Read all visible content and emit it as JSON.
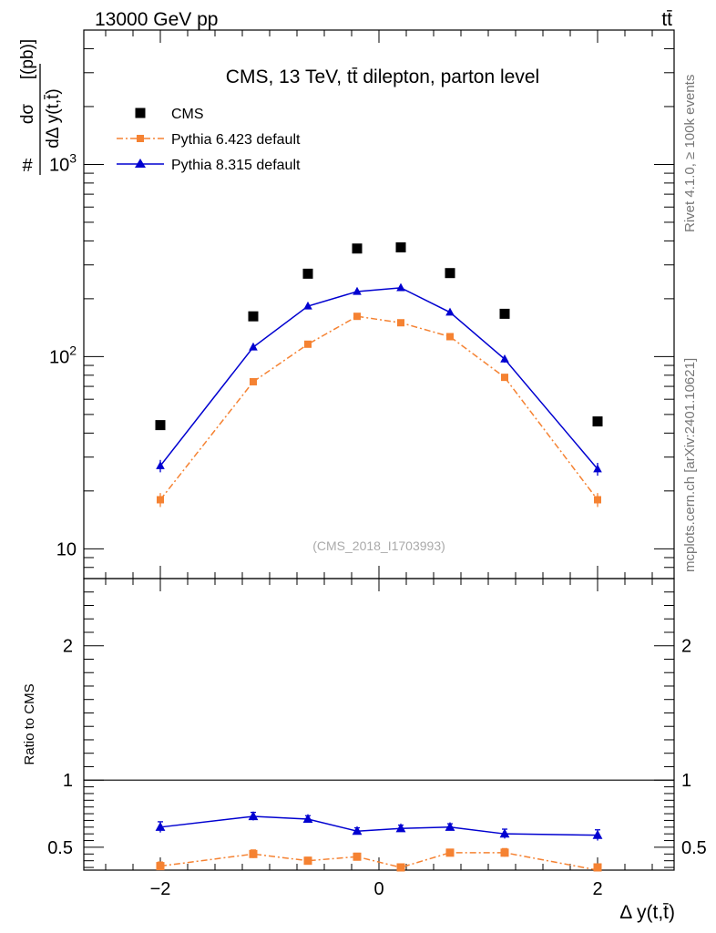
{
  "header": {
    "left": "13000 GeV pp",
    "right": "tt̄"
  },
  "side": {
    "rivet": "Rivet 4.1.0, ≥ 100k events",
    "mcplots": "mcplots.cern.ch [arXiv:2401.10621]"
  },
  "chart_data": {
    "type": "scatter",
    "title": "CMS, 13 TeV, tt̄ dilepton, parton level",
    "watermark": "(CMS_2018_I1703993)",
    "xlabel": "Δ y(t,t̄)",
    "ylabel_main": "# dσ / dΔ y(t,t̄) [(pb)]",
    "ylabel_ratio": "Ratio to CMS",
    "xlim": [
      -2.7,
      2.7
    ],
    "ylim": [
      7,
      5000
    ],
    "ratio_ylim": [
      0.33,
      2.5
    ],
    "x_ticks": [
      -2,
      0,
      2
    ],
    "x_tick_labels": [
      "−2",
      "0",
      "2"
    ],
    "y_ticks": [
      10,
      100,
      1000
    ],
    "y_tick_labels": [
      "10",
      "10²",
      "10³"
    ],
    "ratio_ticks": [
      0.5,
      1,
      2
    ],
    "ratio_tick_labels": [
      "0.5",
      "1",
      "2"
    ],
    "x": [
      -2.0,
      -1.15,
      -0.65,
      -0.2,
      0.2,
      0.65,
      1.15,
      2.0
    ],
    "series": [
      {
        "name": "CMS",
        "color": "#000000",
        "marker": "square",
        "style": "none",
        "values": [
          44,
          162,
          270,
          365,
          370,
          272,
          167,
          46
        ]
      },
      {
        "name": "Pythia 6.423 default",
        "color": "#f58232",
        "marker": "square",
        "style": "dashdot",
        "values": [
          18,
          74,
          116,
          162,
          150,
          127,
          78,
          18
        ],
        "errors": [
          1.5,
          3,
          4,
          5,
          5,
          4,
          3,
          1.5
        ],
        "ratio": [
          0.36,
          0.45,
          0.4,
          0.43,
          0.35,
          0.46,
          0.46,
          0.33
        ],
        "ratio_errors": [
          0.03,
          0.03,
          0.025,
          0.025,
          0.02,
          0.025,
          0.03,
          0.03
        ]
      },
      {
        "name": "Pythia 8.315 default",
        "color": "#0000d0",
        "marker": "triangle",
        "style": "solid",
        "values": [
          27,
          112,
          183,
          218,
          228,
          170,
          97,
          26
        ],
        "errors": [
          2,
          4,
          5,
          6,
          6,
          5,
          4,
          2
        ],
        "ratio": [
          0.65,
          0.73,
          0.71,
          0.62,
          0.64,
          0.65,
          0.6,
          0.59
        ],
        "ratio_errors": [
          0.04,
          0.03,
          0.025,
          0.025,
          0.025,
          0.025,
          0.035,
          0.04
        ]
      }
    ]
  }
}
